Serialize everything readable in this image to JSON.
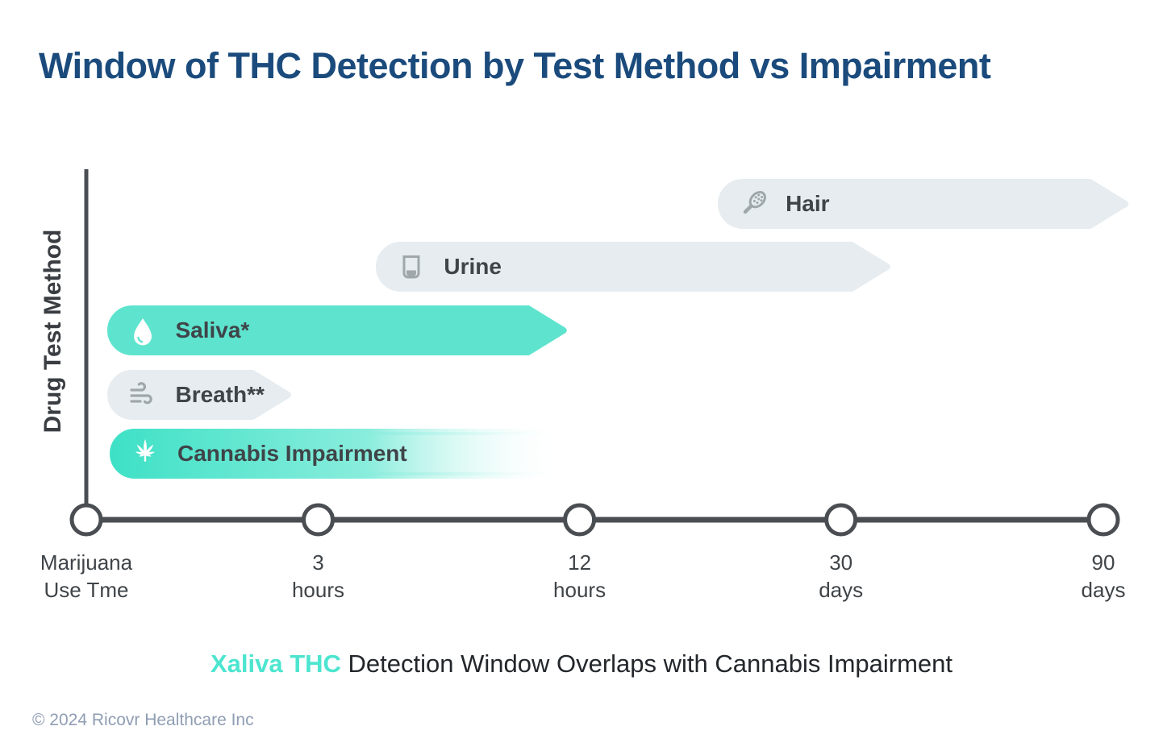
{
  "title": "Window of THC Detection by Test Method vs Impairment",
  "y_axis_label": "Drug Test Method",
  "subtitle": {
    "highlight": "Xaliva THC",
    "rest": " Detection Window Overlaps with Cannabis Impairment"
  },
  "footer": "© 2024 Ricovr Healthcare Inc",
  "colors": {
    "title_blue": "#1B4B7C",
    "teal_bar": "#5EE4CE",
    "teal_fade_start": "#3EE1C6",
    "teal_fade_mid": "#8AEDDD",
    "subtitle_teal": "#4DE5CF",
    "gray_bar": "#E6ECEF",
    "axis": "#4A4E52",
    "bar_text": "#3F4448",
    "icon_gray": "#9FA7AB",
    "footer_gray": "#8F9DB3"
  },
  "chart_data": {
    "type": "bar",
    "subtype": "horizontal-timeline-arrows",
    "title": "Window of THC Detection by Test Method vs Impairment",
    "xlabel": "Marijuana Use Tme",
    "ylabel": "Drug Test Method",
    "grid": false,
    "legend": false,
    "x_ticks": [
      {
        "lines": [
          "Marijuana",
          "Use Tme"
        ],
        "frac": 0
      },
      {
        "lines": [
          "3",
          "hours"
        ],
        "frac": 0.228
      },
      {
        "lines": [
          "12",
          "hours"
        ],
        "frac": 0.485
      },
      {
        "lines": [
          "30",
          "days"
        ],
        "frac": 0.742
      },
      {
        "lines": [
          "90",
          "days"
        ],
        "frac": 1.0
      }
    ],
    "series": [
      {
        "name": "Hair",
        "icon": "hairbrush-icon",
        "style": "gray",
        "start_frac": 0.621,
        "end_frac": 1.028,
        "window": "from ~several days after use to beyond 90 days"
      },
      {
        "name": "Urine",
        "icon": "cup-icon",
        "style": "gray",
        "start_frac": 0.285,
        "end_frac": 0.794,
        "window": "from ~12 hours to well beyond 30 days"
      },
      {
        "name": "Saliva*",
        "icon": "droplet-icon",
        "style": "teal",
        "start_frac": 0.021,
        "end_frac": 0.476,
        "window": "from use time to ~12 hours"
      },
      {
        "name": "Breath**",
        "icon": "breath-icon",
        "style": "gray",
        "start_frac": 0.021,
        "end_frac": 0.205,
        "window": "from use time to ~3 hours"
      },
      {
        "name": "Cannabis Impairment",
        "icon": "cannabis-leaf-icon",
        "style": "teal-fade",
        "start_frac": 0.023,
        "end_frac": 0.49,
        "window": "from use time, fading out by ~12 hours"
      }
    ]
  }
}
